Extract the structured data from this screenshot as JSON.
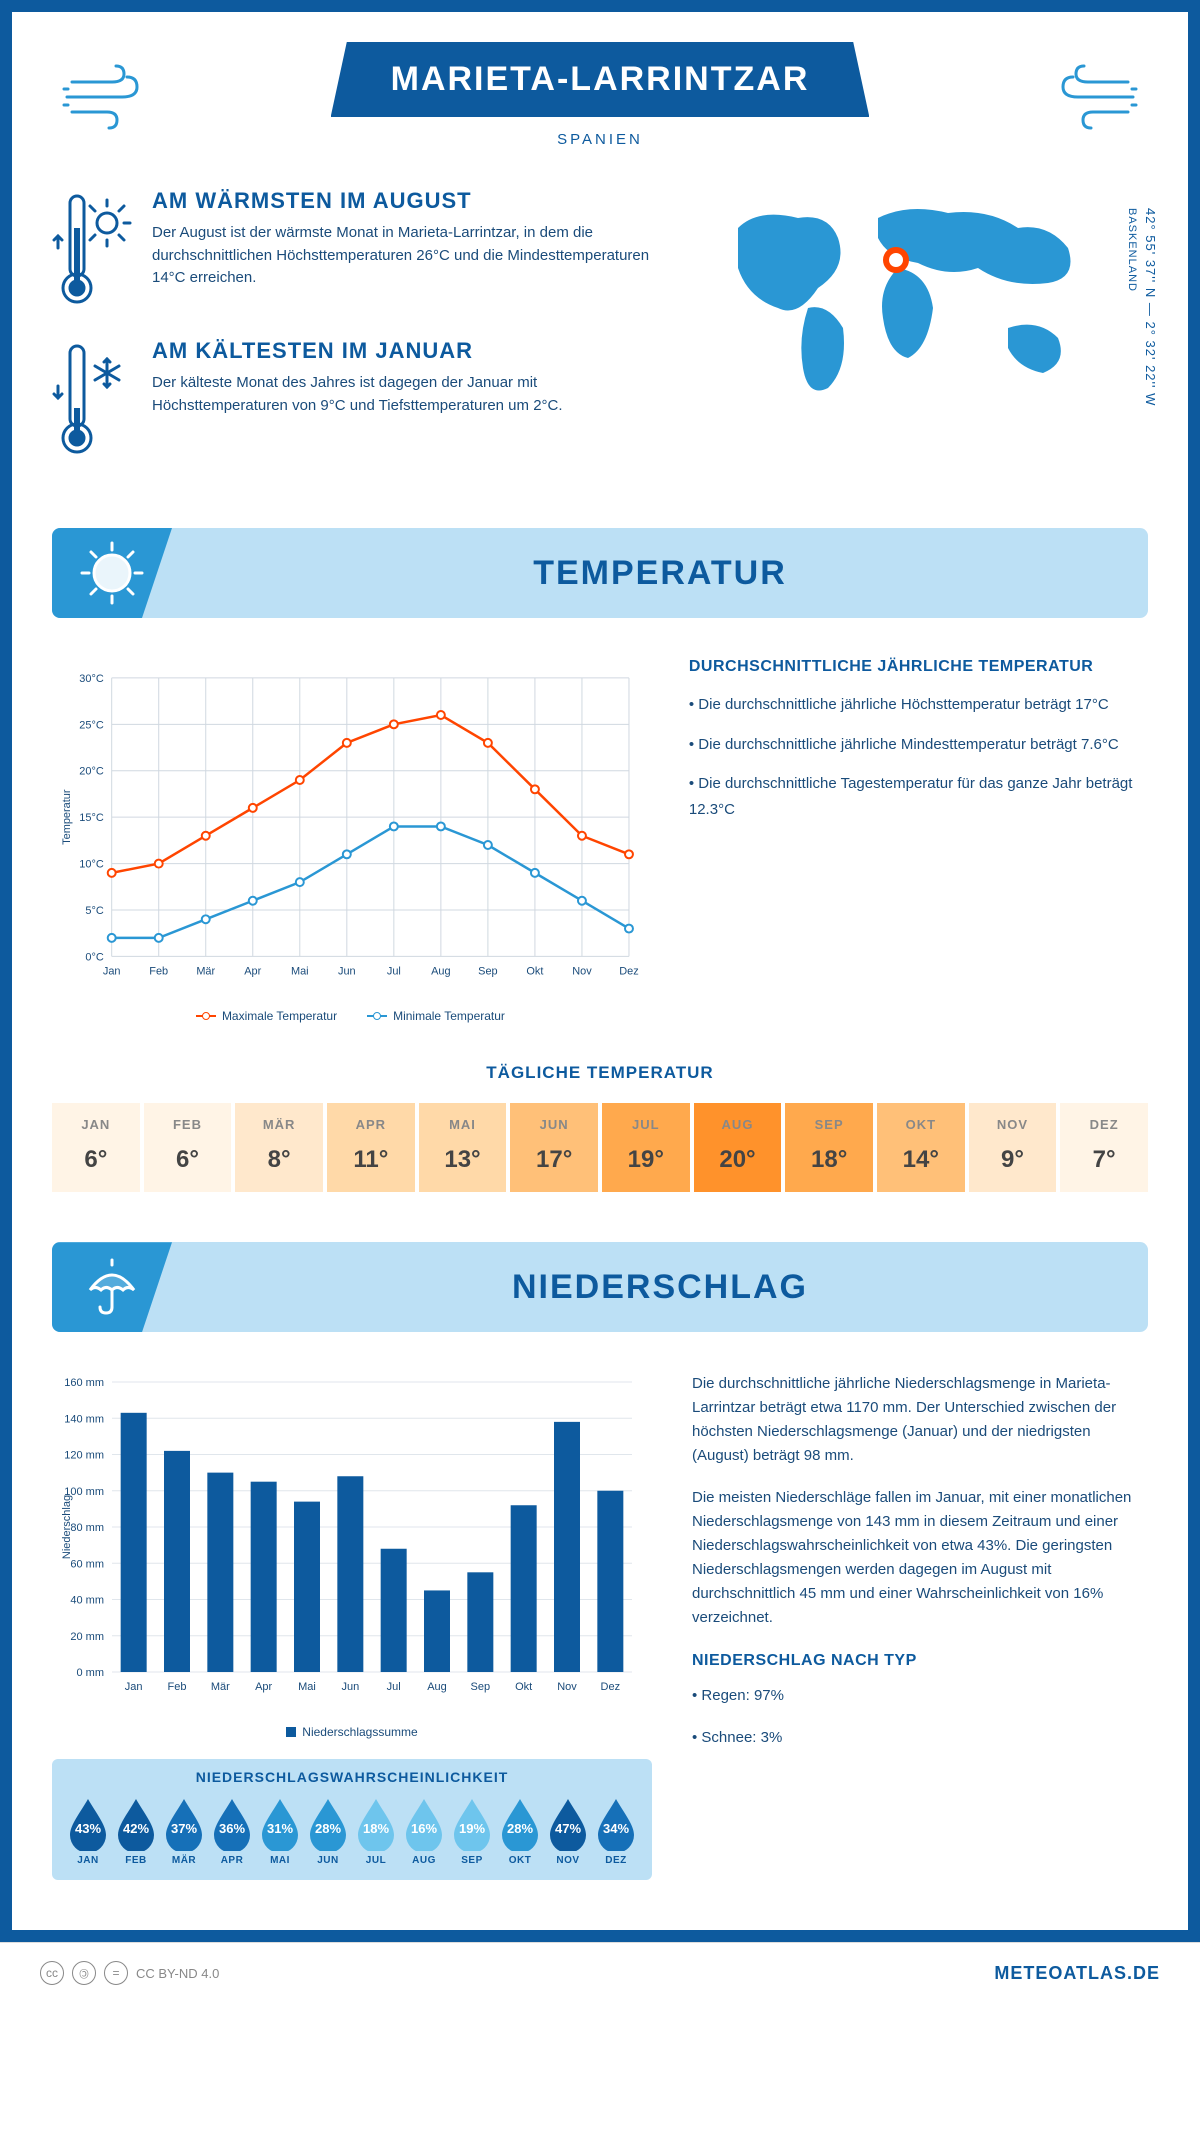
{
  "header": {
    "title": "MARIETA-LARRINTZAR",
    "subtitle": "SPANIEN"
  },
  "intro": {
    "warm": {
      "heading": "AM WÄRMSTEN IM AUGUST",
      "text": "Der August ist der wärmste Monat in Marieta-Larrintzar, in dem die durchschnittlichen Höchsttemperaturen 26°C und die Mindesttemperaturen 14°C erreichen."
    },
    "cold": {
      "heading": "AM KÄLTESTEN IM JANUAR",
      "text": "Der kälteste Monat des Jahres ist dagegen der Januar mit Höchsttemperaturen von 9°C und Tiefsttemperaturen um 2°C."
    },
    "coords": "42° 55' 37'' N — 2° 32' 22'' W",
    "region": "BASKENLAND"
  },
  "sections": {
    "temperature": "TEMPERATUR",
    "precipitation": "NIEDERSCHLAG"
  },
  "temp_chart": {
    "type": "line",
    "months": [
      "Jan",
      "Feb",
      "Mär",
      "Apr",
      "Mai",
      "Jun",
      "Jul",
      "Aug",
      "Sep",
      "Okt",
      "Nov",
      "Dez"
    ],
    "max_series": {
      "label": "Maximale Temperatur",
      "color": "#ff4500",
      "values": [
        9,
        10,
        13,
        16,
        19,
        23,
        25,
        26,
        23,
        18,
        13,
        11
      ]
    },
    "min_series": {
      "label": "Minimale Temperatur",
      "color": "#2a97d4",
      "values": [
        2,
        2,
        4,
        6,
        8,
        11,
        14,
        14,
        12,
        9,
        6,
        3
      ]
    },
    "y_label": "Temperatur",
    "y_ticks": [
      0,
      5,
      10,
      15,
      20,
      25,
      30
    ],
    "y_tick_labels": [
      "0°C",
      "5°C",
      "10°C",
      "15°C",
      "20°C",
      "25°C",
      "30°C"
    ],
    "grid_color": "#d0d8e0",
    "background": "#ffffff"
  },
  "temp_info": {
    "heading": "DURCHSCHNITTLICHE JÄHRLICHE TEMPERATUR",
    "bullets": [
      "• Die durchschnittliche jährliche Höchsttemperatur beträgt 17°C",
      "• Die durchschnittliche jährliche Mindesttemperatur beträgt 7.6°C",
      "• Die durchschnittliche Tagestemperatur für das ganze Jahr beträgt 12.3°C"
    ]
  },
  "daily_temp": {
    "title": "TÄGLICHE TEMPERATUR",
    "months": [
      "JAN",
      "FEB",
      "MÄR",
      "APR",
      "MAI",
      "JUN",
      "JUL",
      "AUG",
      "SEP",
      "OKT",
      "NOV",
      "DEZ"
    ],
    "values": [
      "6°",
      "6°",
      "8°",
      "11°",
      "13°",
      "17°",
      "19°",
      "20°",
      "18°",
      "14°",
      "9°",
      "7°"
    ],
    "colors": [
      "#fff4e6",
      "#fff4e6",
      "#ffe8cc",
      "#ffd9a8",
      "#ffd9a8",
      "#ffc078",
      "#ffa94d",
      "#ff922b",
      "#ffa94d",
      "#ffc078",
      "#ffe8cc",
      "#fff4e6"
    ]
  },
  "precip_chart": {
    "type": "bar",
    "months": [
      "Jan",
      "Feb",
      "Mär",
      "Apr",
      "Mai",
      "Jun",
      "Jul",
      "Aug",
      "Sep",
      "Okt",
      "Nov",
      "Dez"
    ],
    "values": [
      143,
      122,
      110,
      105,
      94,
      108,
      68,
      45,
      55,
      92,
      138,
      100
    ],
    "bar_color": "#0d5a9e",
    "y_label": "Niederschlag",
    "y_ticks": [
      0,
      20,
      40,
      60,
      80,
      100,
      120,
      140,
      160
    ],
    "y_tick_labels": [
      "0 mm",
      "20 mm",
      "40 mm",
      "60 mm",
      "80 mm",
      "100 mm",
      "120 mm",
      "140 mm",
      "160 mm"
    ],
    "legend": "Niederschlagssumme",
    "grid_color": "#e0e6ec"
  },
  "precip_prob": {
    "title": "NIEDERSCHLAGSWAHRSCHEINLICHKEIT",
    "months": [
      "JAN",
      "FEB",
      "MÄR",
      "APR",
      "MAI",
      "JUN",
      "JUL",
      "AUG",
      "SEP",
      "OKT",
      "NOV",
      "DEZ"
    ],
    "values": [
      "43%",
      "42%",
      "37%",
      "36%",
      "31%",
      "28%",
      "18%",
      "16%",
      "19%",
      "28%",
      "47%",
      "34%"
    ],
    "colors": [
      "#0d5a9e",
      "#0d5a9e",
      "#1670b8",
      "#1670b8",
      "#2a97d4",
      "#2a97d4",
      "#6ec5ed",
      "#6ec5ed",
      "#6ec5ed",
      "#2a97d4",
      "#0d5a9e",
      "#1670b8"
    ]
  },
  "precip_text": {
    "p1": "Die durchschnittliche jährliche Niederschlagsmenge in Marieta-Larrintzar beträgt etwa 1170 mm. Der Unterschied zwischen der höchsten Niederschlagsmenge (Januar) und der niedrigsten (August) beträgt 98 mm.",
    "p2": "Die meisten Niederschläge fallen im Januar, mit einer monatlichen Niederschlagsmenge von 143 mm in diesem Zeitraum und einer Niederschlagswahrscheinlichkeit von etwa 43%. Die geringsten Niederschlagsmengen werden dagegen im August mit durchschnittlich 45 mm und einer Wahrscheinlichkeit von 16% verzeichnet.",
    "type_heading": "NIEDERSCHLAG NACH TYP",
    "type_bullets": [
      "• Regen: 97%",
      "• Schnee: 3%"
    ]
  },
  "footer": {
    "license": "CC BY-ND 4.0",
    "brand": "METEOATLAS.DE"
  },
  "palette": {
    "primary": "#0d5a9e",
    "accent": "#2a97d4",
    "light": "#bce0f5",
    "text": "#1a4b7a"
  }
}
